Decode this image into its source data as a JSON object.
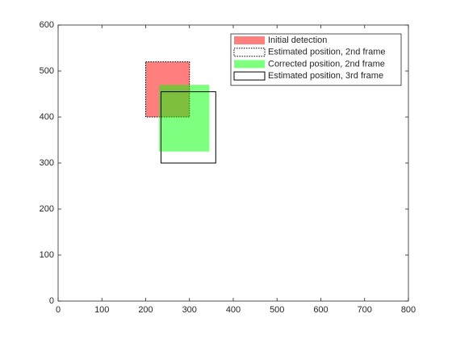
{
  "chart_data": {
    "type": "rectangle",
    "xlim": [
      0,
      800
    ],
    "ylim": [
      0,
      600
    ],
    "xticks": [
      0,
      100,
      200,
      300,
      400,
      500,
      600,
      700,
      800
    ],
    "yticks": [
      0,
      100,
      200,
      300,
      400,
      500,
      600
    ],
    "legend": "northeast",
    "series": [
      {
        "name": "Initial detection",
        "color": "#ff0000",
        "style": "filled",
        "x": 200,
        "y": 400,
        "width": 100,
        "height": 120
      },
      {
        "name": "Estimated position, 2nd frame",
        "color": "#000000",
        "style": "dotted",
        "x": 200,
        "y": 400,
        "width": 100,
        "height": 120
      },
      {
        "name": "Corrected position, 2nd frame",
        "color": "#00ff00",
        "style": "filled",
        "x": 230,
        "y": 325,
        "width": 115,
        "height": 145
      },
      {
        "name": "Estimated position, 3rd frame",
        "color": "#000000",
        "style": "solid",
        "x": 235,
        "y": 300,
        "width": 125,
        "height": 155
      }
    ]
  }
}
